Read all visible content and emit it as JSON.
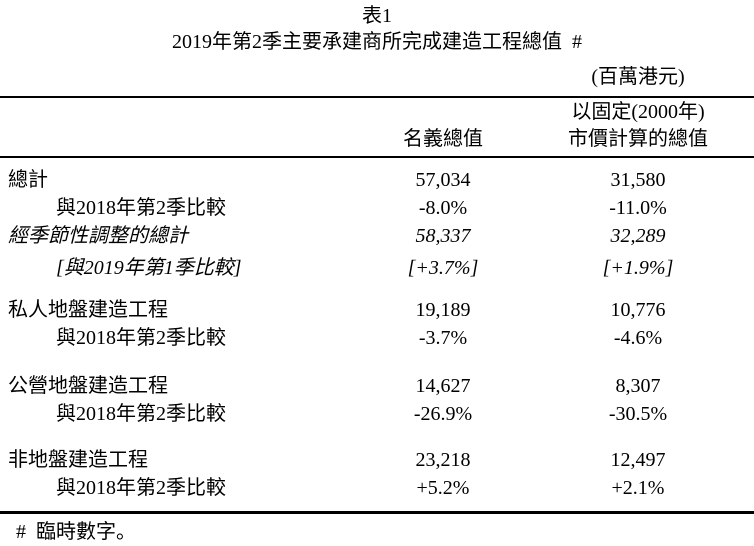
{
  "title": "表1",
  "subtitle": "2019年第2季主要承建商所完成建造工程總值 #",
  "unit_note": "(百萬港元)",
  "header": {
    "nominal": "名義總值",
    "constant_line1": "以固定(2000年)",
    "constant_line2": "市價計算的總值"
  },
  "rows": [
    {
      "label": "總計",
      "nominal": "57,034",
      "constant": "31,580"
    },
    {
      "label": "與2018年第2季比較",
      "nominal": "-8.0%",
      "constant": "-11.0%"
    },
    {
      "label": "經季節性調整的總計",
      "nominal": "58,337",
      "constant": "32,289"
    },
    {
      "label": "[與2019年第1季比較]",
      "nominal": "[+3.7%]",
      "constant": "[+1.9%]"
    },
    {
      "label": "私人地盤建造工程",
      "nominal": "19,189",
      "constant": "10,776"
    },
    {
      "label": "與2018年第2季比較",
      "nominal": "-3.7%",
      "constant": "-4.6%"
    },
    {
      "label": "公營地盤建造工程",
      "nominal": "14,627",
      "constant": "8,307"
    },
    {
      "label": "與2018年第2季比較",
      "nominal": "-26.9%",
      "constant": "-30.5%"
    },
    {
      "label": "非地盤建造工程",
      "nominal": "23,218",
      "constant": "12,497"
    },
    {
      "label": "與2018年第2季比較",
      "nominal": "+5.2%",
      "constant": "+2.1%"
    }
  ],
  "footnote": "# 臨時數字。"
}
